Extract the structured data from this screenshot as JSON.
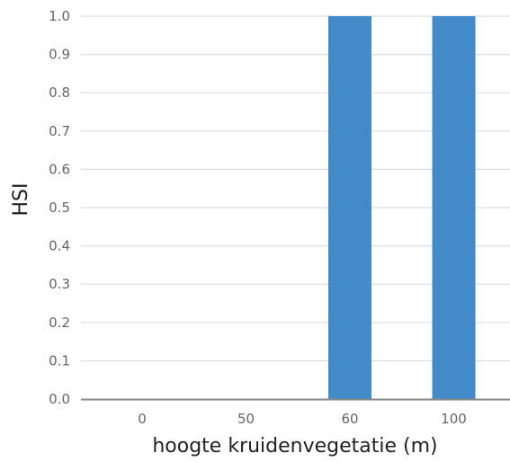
{
  "chart_data": {
    "type": "bar",
    "categories": [
      "0",
      "50",
      "60",
      "100"
    ],
    "values": [
      0.0,
      0.0,
      1.0,
      1.0
    ],
    "xlabel": "hoogte kruidenvegetatie (m)",
    "ylabel": "HSI",
    "ylim": [
      0,
      1.0
    ],
    "yticks": [
      "0.0",
      "0.1",
      "0.2",
      "0.3",
      "0.4",
      "0.5",
      "0.6",
      "0.7",
      "0.8",
      "0.9",
      "1.0"
    ],
    "grid": true,
    "legend": "none",
    "colors": {
      "bar": "#428bc8",
      "grid": "#dddddd",
      "axis": "#888888"
    }
  }
}
